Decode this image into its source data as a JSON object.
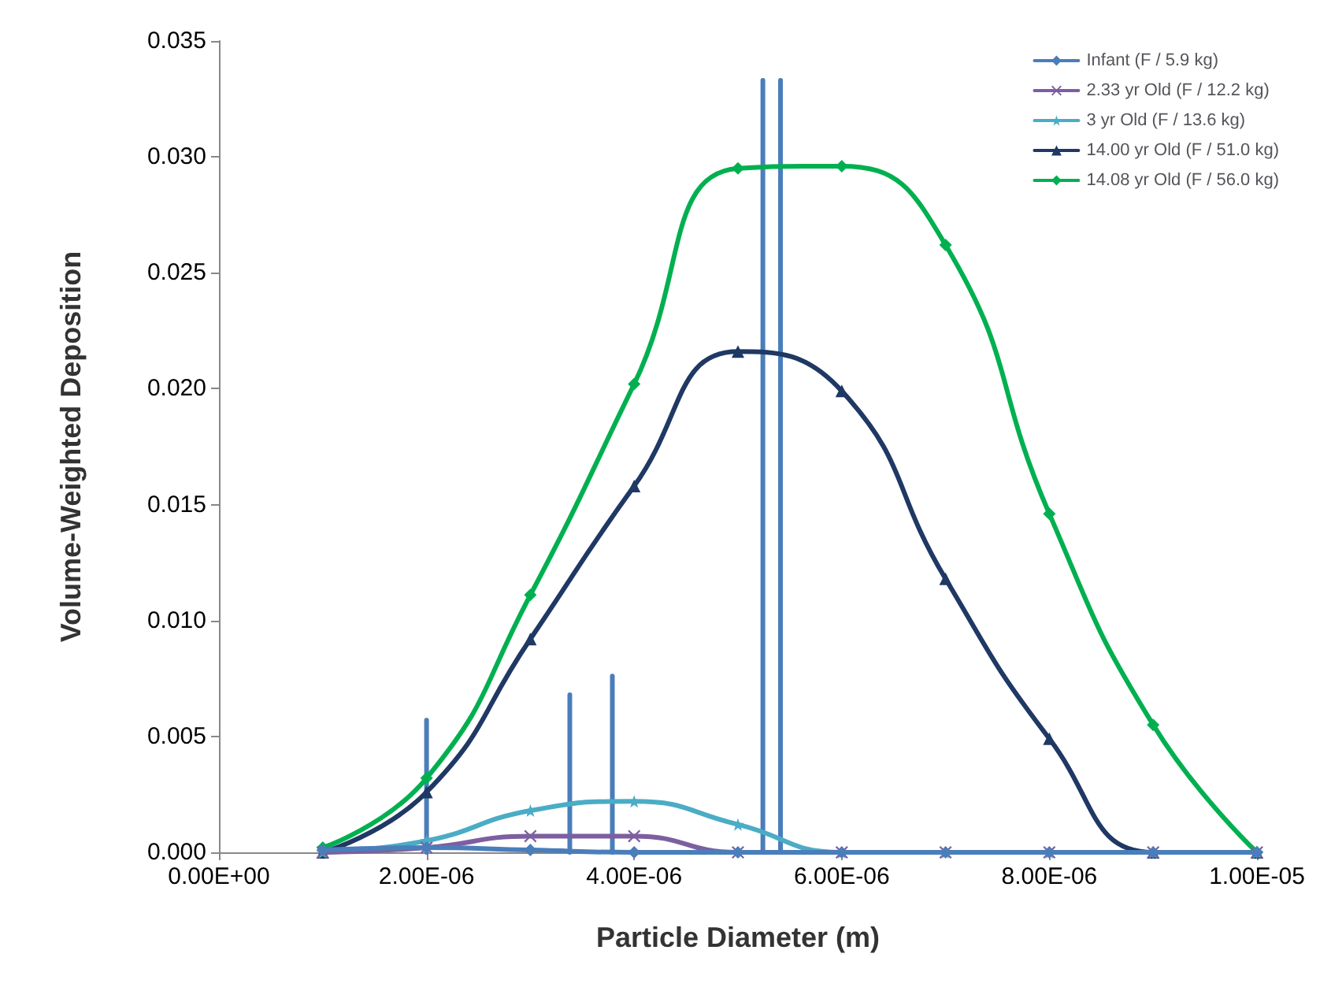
{
  "chart_data": {
    "type": "line",
    "xlabel": "Particle Diameter (m)",
    "ylabel": "Volume-Weighted Deposition",
    "x": [
      1e-06,
      2e-06,
      3e-06,
      4e-06,
      5e-06,
      6e-06,
      7e-06,
      8e-06,
      9e-06,
      1e-05
    ],
    "series": [
      {
        "name": "Infant (F / 5.9 kg)",
        "color": "#4a7ebb",
        "marker": "diamond",
        "values": [
          0.0001,
          0.0002,
          0.0001,
          0,
          0,
          0,
          0,
          0,
          0,
          0
        ]
      },
      {
        "name": "2.33 yr Old (F / 12.2 kg)",
        "color": "#7d5fa0",
        "marker": "cross",
        "values": [
          0,
          0.0002,
          0.0007,
          0.0007,
          0,
          0,
          0,
          0,
          0,
          0
        ]
      },
      {
        "name": "3 yr Old (F / 13.6 kg)",
        "color": "#4bacc6",
        "marker": "star",
        "values": [
          0,
          0.0005,
          0.0018,
          0.0022,
          0.0012,
          0,
          0,
          0,
          0,
          0
        ]
      },
      {
        "name": "14.00 yr Old (F / 51.0 kg)",
        "color": "#1f3864",
        "marker": "triangle",
        "values": [
          0,
          0.0026,
          0.0092,
          0.0158,
          0.0216,
          0.0199,
          0.0118,
          0.0049,
          0,
          0
        ]
      },
      {
        "name": "14.08 yr Old (F / 56.0 kg)",
        "color": "#00b050",
        "marker": "diamond",
        "values": [
          0.0002,
          0.0032,
          0.0111,
          0.0202,
          0.0295,
          0.0296,
          0.0262,
          0.0146,
          0.0055,
          0
        ]
      },
      {
        "color": "#4a7ebb",
        "marker": "none",
        "x": [
          2e-06,
          2e-06
        ],
        "values": [
          0,
          0.0057
        ]
      },
      {
        "color": "#4a7ebb",
        "marker": "none",
        "x": [
          3.38e-06,
          3.38e-06
        ],
        "values": [
          0,
          0.0068
        ]
      },
      {
        "color": "#4a7ebb",
        "marker": "none",
        "x": [
          3.79e-06,
          3.79e-06
        ],
        "values": [
          0,
          0.0076
        ]
      },
      {
        "color": "#4a7ebb",
        "marker": "none",
        "x": [
          5.24e-06,
          5.24e-06
        ],
        "values": [
          0,
          0.0333
        ]
      },
      {
        "color": "#4a7ebb",
        "marker": "none",
        "x": [
          5.41e-06,
          5.41e-06
        ],
        "values": [
          0,
          0.0333
        ]
      }
    ],
    "xlim": [
      0,
      1e-05
    ],
    "xticks": [
      {
        "value": 0,
        "label": "0.00E+00"
      },
      {
        "value": 2e-06,
        "label": "2.00E-06"
      },
      {
        "value": 4e-06,
        "label": "4.00E-06"
      },
      {
        "value": 6e-06,
        "label": "6.00E-06"
      },
      {
        "value": 8e-06,
        "label": "8.00E-06"
      },
      {
        "value": 1e-05,
        "label": "1.00E-05"
      }
    ],
    "ylim": [
      0,
      0.035
    ],
    "yticks": [
      {
        "value": 0,
        "label": "0.000"
      },
      {
        "value": 0.005,
        "label": "0.005"
      },
      {
        "value": 0.01,
        "label": "0.010"
      },
      {
        "value": 0.015,
        "label": "0.015"
      },
      {
        "value": 0.02,
        "label": "0.020"
      },
      {
        "value": 0.025,
        "label": "0.025"
      },
      {
        "value": 0.03,
        "label": "0.030"
      },
      {
        "value": 0.035,
        "label": "0.035"
      }
    ],
    "grid": false,
    "legend": "top right",
    "line_style": "solid"
  }
}
